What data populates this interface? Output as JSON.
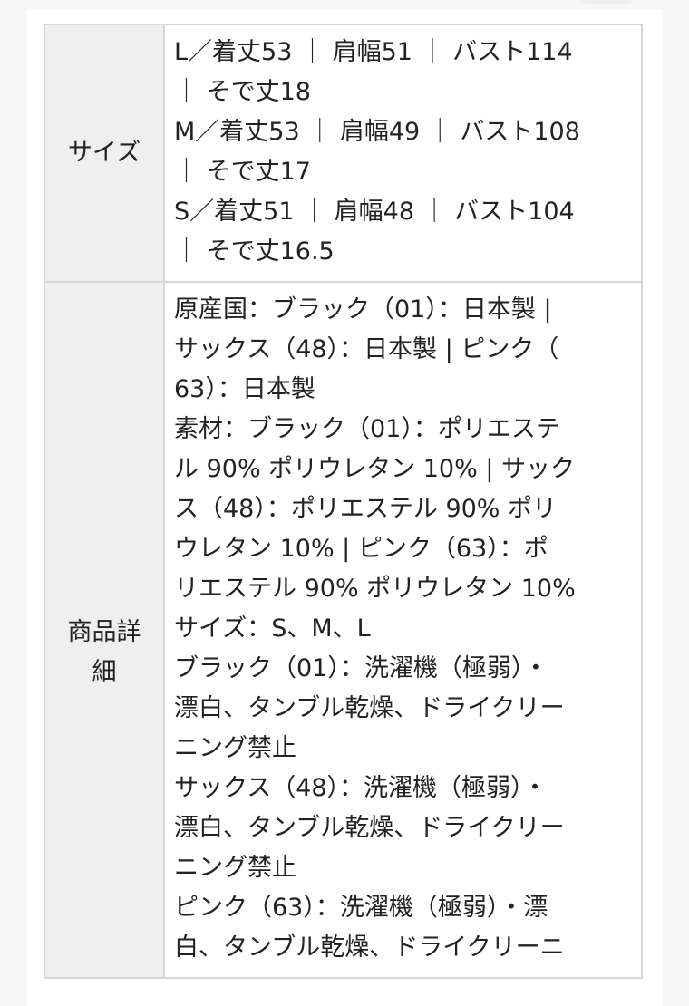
{
  "table": {
    "rows": [
      {
        "header": "サイズ",
        "lines": [
          "L／着丈53 ｜ 肩幅51 ｜ バスト114",
          " ｜ そで丈18",
          "M／着丈53 ｜ 肩幅49 ｜ バスト108",
          " ｜ そで丈17",
          "S／着丈51 ｜ 肩幅48 ｜ バスト104",
          " ｜ そで丈16.5"
        ]
      },
      {
        "header_lines": [
          "商品詳",
          "細"
        ],
        "lines": [
          "原産国：ブラック（01）：日本製 |",
          "サックス（48）：日本製 | ピンク（",
          "63）：日本製",
          "素材：ブラック（01）：ポリエステ",
          "ル 90% ポリウレタン 10% | サック",
          "ス（48）：ポリエステル 90% ポリ",
          "ウレタン 10% | ピンク（63）：ポ",
          "リエステル 90% ポリウレタン 10%",
          "サイズ：S、M、L",
          "ブラック（01）：洗濯機（極弱）・",
          "漂白、タンブル乾燥、ドライクリー",
          "ニング禁止",
          "サックス（48）：洗濯機（極弱）・",
          "漂白、タンブル乾燥、ドライクリー",
          "ニング禁止",
          "ピンク（63）：洗濯機（極弱）・漂",
          "白、タンブル乾燥、ドライクリーニ"
        ]
      }
    ]
  }
}
